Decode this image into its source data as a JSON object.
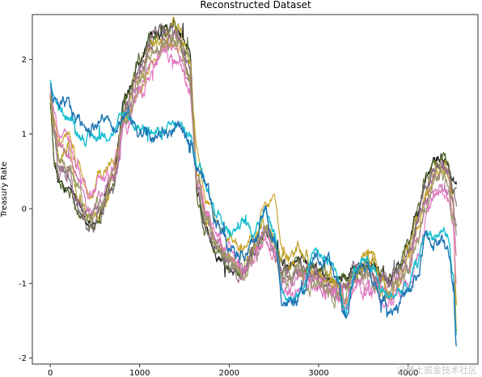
{
  "chart_data": {
    "type": "line",
    "title": "Reconstructed Dataset",
    "xlabel": "",
    "ylabel": "Treasury Rate",
    "xlim": [
      -200,
      4780
    ],
    "ylim": [
      -2.08,
      2.6
    ],
    "xticks": [
      0,
      1000,
      2000,
      3000,
      4000
    ],
    "yticks": [
      -2,
      -1,
      0,
      1,
      2
    ],
    "grid": false,
    "legend": "none",
    "x_start": 0,
    "x_end": 4540,
    "series_count": 11,
    "series_colors": [
      "#1a1a1a",
      "#556b2f",
      "#b8a12c",
      "#c9a227",
      "#7f6a7a",
      "#a0728c",
      "#d07bb5",
      "#e377c2",
      "#9b9b6b",
      "#17becf",
      "#1f77b4"
    ],
    "series_knots_x": [
      0,
      50,
      100,
      200,
      300,
      450,
      550,
      700,
      850,
      1000,
      1150,
      1300,
      1400,
      1550,
      1650,
      1750,
      1850,
      2000,
      2150,
      2300,
      2400,
      2500,
      2600,
      2700,
      2800,
      2950,
      3100,
      3200,
      3300,
      3400,
      3500,
      3600,
      3700,
      3800,
      3900,
      4000,
      4100,
      4200,
      4300,
      4400,
      4450,
      4500,
      4540
    ],
    "series": [
      {
        "values": [
          1.35,
          0.55,
          0.3,
          0.25,
          0.05,
          -0.2,
          -0.15,
          0.45,
          1.55,
          2.0,
          2.35,
          2.42,
          2.45,
          2.1,
          0.2,
          -0.25,
          -0.55,
          -0.8,
          -0.85,
          -0.55,
          -0.35,
          -0.45,
          -0.75,
          -0.8,
          -0.7,
          -0.75,
          -0.9,
          -0.95,
          -0.95,
          -0.7,
          -0.8,
          -0.75,
          -0.9,
          -0.95,
          -0.7,
          -0.5,
          -0.05,
          0.4,
          0.68,
          0.68,
          0.6,
          0.35,
          0.3
        ]
      },
      {
        "values": [
          1.4,
          0.6,
          0.35,
          0.25,
          0.05,
          -0.22,
          -0.15,
          0.4,
          1.5,
          2.0,
          2.32,
          2.4,
          2.43,
          2.05,
          0.15,
          -0.3,
          -0.6,
          -0.82,
          -0.85,
          -0.55,
          -0.3,
          -0.42,
          -0.75,
          -0.82,
          -0.75,
          -0.8,
          -0.92,
          -0.95,
          -0.95,
          -0.72,
          -0.82,
          -0.78,
          -0.92,
          -0.95,
          -0.72,
          -0.52,
          -0.1,
          0.35,
          0.65,
          0.7,
          0.62,
          0.3,
          0.25
        ]
      },
      {
        "values": [
          1.45,
          0.9,
          0.55,
          0.85,
          0.2,
          -0.15,
          0.0,
          0.35,
          1.3,
          1.85,
          2.2,
          2.35,
          2.4,
          2.0,
          0.5,
          -0.1,
          -0.45,
          -0.7,
          -0.8,
          -0.5,
          -0.2,
          -0.35,
          -0.6,
          -0.7,
          -0.6,
          -0.8,
          -0.95,
          -1.0,
          -1.1,
          -0.85,
          -0.75,
          -0.7,
          -0.95,
          -1.1,
          -0.85,
          -0.55,
          -0.2,
          0.3,
          0.55,
          0.65,
          0.55,
          0.1,
          -1.5
        ]
      },
      {
        "values": [
          1.5,
          1.2,
          0.9,
          1.1,
          0.7,
          0.1,
          0.5,
          0.6,
          1.2,
          1.55,
          2.0,
          2.2,
          2.25,
          1.85,
          0.8,
          0.1,
          -0.2,
          -0.35,
          -0.55,
          -0.35,
          0.0,
          0.1,
          -0.55,
          -0.75,
          -0.8,
          -0.85,
          -0.95,
          -1.05,
          -1.25,
          -0.9,
          -0.6,
          -0.55,
          -0.9,
          -1.15,
          -1.0,
          -0.65,
          -0.25,
          0.2,
          0.5,
          0.55,
          0.45,
          0.15,
          -1.3
        ]
      },
      {
        "values": [
          1.5,
          0.95,
          0.5,
          0.4,
          0.0,
          -0.3,
          -0.1,
          0.3,
          1.4,
          1.9,
          2.25,
          2.38,
          2.4,
          2.0,
          0.25,
          -0.2,
          -0.5,
          -0.75,
          -0.8,
          -0.5,
          -0.3,
          -0.5,
          -0.8,
          -0.9,
          -0.75,
          -0.85,
          -1.0,
          -1.05,
          -1.05,
          -0.8,
          -0.85,
          -0.85,
          -0.95,
          -1.0,
          -0.8,
          -0.6,
          -0.2,
          0.25,
          0.55,
          0.6,
          0.5,
          0.2,
          0.05
        ]
      },
      {
        "values": [
          1.55,
          1.0,
          0.6,
          0.55,
          0.2,
          -0.15,
          0.05,
          0.35,
          1.3,
          1.8,
          2.15,
          2.3,
          2.3,
          1.9,
          0.3,
          -0.15,
          -0.45,
          -0.7,
          -0.8,
          -0.5,
          -0.25,
          -0.45,
          -0.85,
          -0.95,
          -0.8,
          -0.9,
          -1.05,
          -1.1,
          -1.1,
          -0.85,
          -0.9,
          -0.9,
          -1.0,
          -1.05,
          -0.85,
          -0.7,
          -0.3,
          0.15,
          0.45,
          0.5,
          0.4,
          0.05,
          -0.2
        ]
      },
      {
        "values": [
          1.6,
          1.1,
          0.8,
          0.7,
          0.4,
          0.0,
          0.2,
          0.4,
          1.2,
          1.65,
          2.0,
          2.15,
          2.15,
          1.75,
          0.35,
          -0.1,
          -0.4,
          -0.65,
          -0.85,
          -0.55,
          -0.3,
          -0.5,
          -0.95,
          -1.05,
          -0.9,
          -1.0,
          -1.1,
          -1.15,
          -1.2,
          -0.95,
          -1.0,
          -1.0,
          -1.1,
          -1.15,
          -0.95,
          -0.8,
          -0.45,
          0.0,
          0.3,
          0.35,
          0.25,
          -0.1,
          -0.6
        ]
      },
      {
        "values": [
          1.6,
          1.2,
          0.95,
          0.95,
          0.6,
          0.15,
          0.35,
          0.5,
          1.15,
          1.5,
          1.85,
          2.0,
          2.0,
          1.6,
          0.4,
          -0.05,
          -0.35,
          -0.6,
          -0.9,
          -0.6,
          -0.35,
          -0.6,
          -1.05,
          -1.15,
          -1.0,
          -1.05,
          -1.15,
          -1.2,
          -1.3,
          -1.05,
          -1.1,
          -1.1,
          -1.2,
          -1.25,
          -1.05,
          -0.95,
          -0.6,
          -0.15,
          0.15,
          0.2,
          0.1,
          -0.3,
          -1.0
        ]
      },
      {
        "values": [
          1.55,
          1.05,
          0.7,
          0.6,
          0.3,
          -0.05,
          0.1,
          0.4,
          1.25,
          1.7,
          2.05,
          2.2,
          2.2,
          1.8,
          0.3,
          -0.15,
          -0.45,
          -0.7,
          -0.85,
          -0.55,
          -0.3,
          -0.5,
          -0.9,
          -1.0,
          -0.85,
          -0.95,
          -1.05,
          -1.1,
          -1.15,
          -0.9,
          -0.95,
          -0.95,
          -1.05,
          -1.1,
          -0.9,
          -0.75,
          -0.4,
          0.05,
          0.35,
          0.4,
          0.3,
          -0.05,
          -0.4
        ]
      },
      {
        "values": [
          1.7,
          1.5,
          1.35,
          1.25,
          1.0,
          0.95,
          1.0,
          1.05,
          1.25,
          1.1,
          1.0,
          1.05,
          1.1,
          1.0,
          0.6,
          0.35,
          0.0,
          -0.3,
          -0.2,
          -0.3,
          0.05,
          -0.3,
          -1.1,
          -1.2,
          -1.1,
          -0.55,
          -0.65,
          -0.8,
          -1.35,
          -0.8,
          -0.7,
          -0.8,
          -1.1,
          -1.2,
          -1.1,
          -1.05,
          -0.75,
          -0.3,
          -0.35,
          -0.3,
          -0.4,
          -0.85,
          -1.7
        ]
      },
      {
        "values": [
          1.65,
          1.45,
          1.3,
          1.35,
          1.2,
          1.1,
          1.2,
          1.15,
          1.25,
          1.05,
          0.95,
          1.0,
          1.05,
          0.95,
          0.55,
          0.3,
          -0.1,
          -0.45,
          -0.55,
          -0.4,
          -0.05,
          -0.45,
          -1.2,
          -1.3,
          -1.2,
          -0.65,
          -0.75,
          -0.95,
          -1.45,
          -0.9,
          -0.8,
          -0.85,
          -1.2,
          -1.3,
          -1.25,
          -1.15,
          -0.9,
          -0.4,
          -0.45,
          -0.45,
          -0.55,
          -1.0,
          -1.85
        ]
      }
    ]
  },
  "watermark": "@稀土掘金技术社区"
}
